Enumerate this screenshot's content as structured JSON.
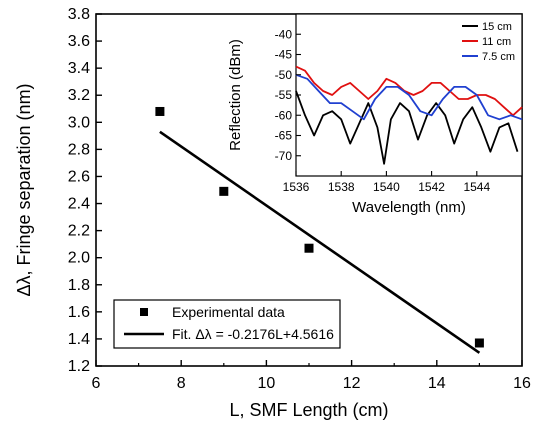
{
  "chart_data": [
    {
      "type": "scatter",
      "xlabel": "L, SMF Length (cm)",
      "ylabel": "Δλ, Fringe separation (nm)",
      "xlim": [
        6,
        16
      ],
      "ylim": [
        1.2,
        3.8
      ],
      "xticks": [
        "6",
        "8",
        "10",
        "12",
        "14",
        "16"
      ],
      "yticks": [
        "1.2",
        "1.4",
        "1.6",
        "1.8",
        "2.0",
        "2.2",
        "2.4",
        "2.6",
        "2.8",
        "3.0",
        "3.2",
        "3.4",
        "3.6",
        "3.8"
      ],
      "series": [
        {
          "name": "Experimental data",
          "marker": "square",
          "color": "#000000",
          "points": [
            {
              "x": 7.5,
              "y": 3.08
            },
            {
              "x": 9.0,
              "y": 2.49
            },
            {
              "x": 11.0,
              "y": 2.07
            },
            {
              "x": 15.0,
              "y": 1.37
            }
          ]
        },
        {
          "name": "Fit. Δλ = -0.2176L+4.5616",
          "type": "line",
          "color": "#000000",
          "slope": -0.2176,
          "intercept": 4.5616,
          "x_range": [
            7.5,
            15.0
          ]
        }
      ],
      "legend": "bottom-left"
    },
    {
      "type": "line",
      "xlabel": "Wavelength (nm)",
      "ylabel": "Reflection (dBm)",
      "xlim": [
        1536,
        1546
      ],
      "ylim": [
        -75,
        -35
      ],
      "xticks": [
        "1536",
        "1538",
        "1540",
        "1542",
        "1544"
      ],
      "yticks": [
        "-70",
        "-65",
        "-60",
        "-55",
        "-50",
        "-45",
        "-40"
      ],
      "legend": "top-right",
      "series": [
        {
          "name": "15 cm",
          "color": "#000000",
          "x": [
            1536.0,
            1536.4,
            1536.8,
            1537.2,
            1537.6,
            1538.0,
            1538.4,
            1538.8,
            1539.2,
            1539.6,
            1539.9,
            1540.2,
            1540.6,
            1541.0,
            1541.4,
            1541.8,
            1542.2,
            1542.6,
            1543.0,
            1543.4,
            1543.8,
            1544.2,
            1544.6,
            1545.0,
            1545.4,
            1545.8
          ],
          "y": [
            -54,
            -60,
            -65,
            -60,
            -59,
            -61,
            -67,
            -62,
            -57,
            -63,
            -72,
            -61,
            -57,
            -59,
            -66,
            -60,
            -57,
            -60,
            -67,
            -61,
            -58,
            -63,
            -69,
            -63,
            -62,
            -69
          ]
        },
        {
          "name": "11 cm",
          "color": "#e01010",
          "x": [
            1536.0,
            1536.4,
            1536.8,
            1537.2,
            1537.6,
            1538.0,
            1538.4,
            1538.8,
            1539.2,
            1539.6,
            1540.0,
            1540.4,
            1540.8,
            1541.2,
            1541.6,
            1542.0,
            1542.4,
            1542.8,
            1543.2,
            1543.6,
            1544.0,
            1544.4,
            1544.8,
            1545.2,
            1545.6,
            1546.0
          ],
          "y": [
            -48,
            -49,
            -52,
            -54,
            -55,
            -53,
            -52,
            -54,
            -56,
            -54,
            -51,
            -52,
            -54,
            -55,
            -54,
            -52,
            -52,
            -54,
            -56,
            -56,
            -55,
            -55,
            -56,
            -58,
            -60,
            -58
          ]
        },
        {
          "name": "7.5 cm",
          "color": "#2040d0",
          "x": [
            1536.0,
            1536.5,
            1537.0,
            1537.5,
            1538.0,
            1538.5,
            1539.0,
            1539.5,
            1540.0,
            1540.5,
            1541.0,
            1541.5,
            1542.0,
            1542.5,
            1543.0,
            1543.5,
            1544.0,
            1544.5,
            1545.0,
            1545.5,
            1546.0
          ],
          "y": [
            -50,
            -51,
            -54,
            -57,
            -57,
            -59,
            -61,
            -56,
            -53,
            -53,
            -55,
            -59,
            -60,
            -56,
            -53,
            -53,
            -55,
            -60,
            -61,
            -60,
            -61
          ]
        }
      ]
    }
  ]
}
